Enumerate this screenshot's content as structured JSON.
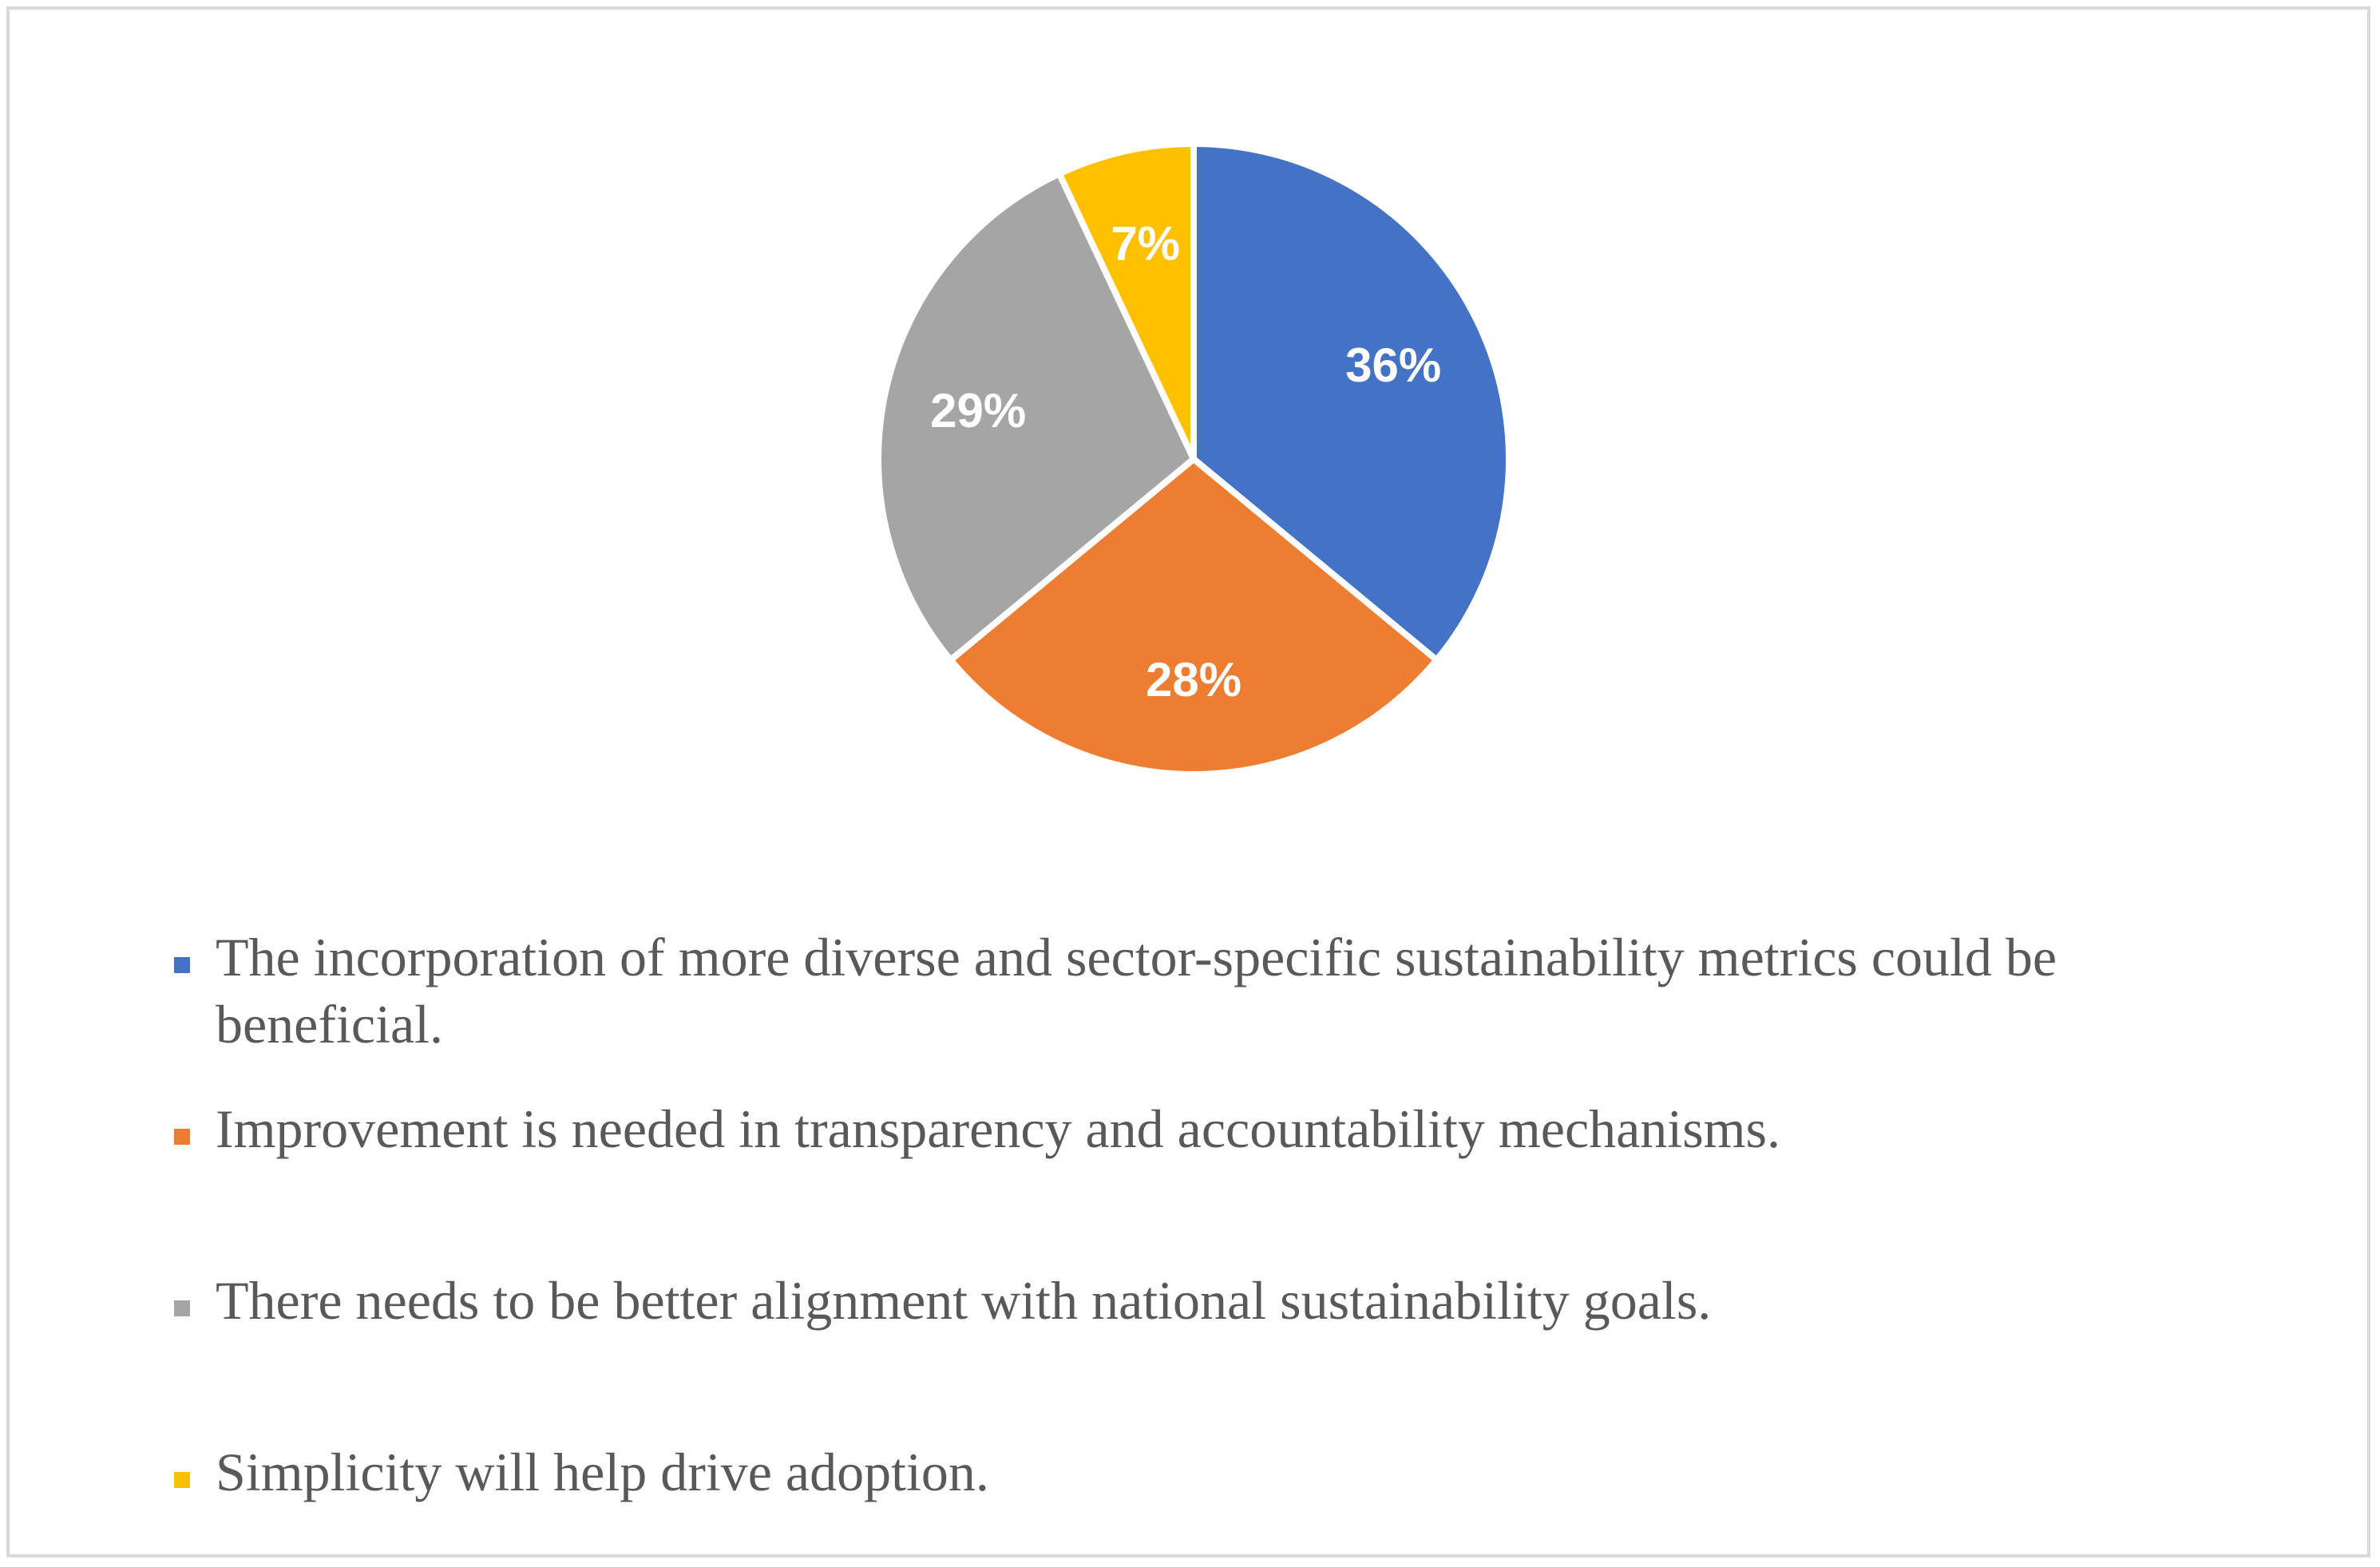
{
  "chart_data": {
    "type": "pie",
    "title": "",
    "series": [
      {
        "name": "",
        "values": [
          36,
          28,
          29,
          7
        ]
      }
    ],
    "categories": [
      "The incorporation of more diverse and sector-specific sustainability metrics could be beneficial.",
      "Improvement is needed in transparency and accountability mechanisms.",
      "There needs to be better alignment with national sustainability goals.",
      "Simplicity will help drive adoption."
    ],
    "data_labels": [
      "36%",
      "28%",
      "29%",
      "7%"
    ],
    "colors": [
      "#4472c4",
      "#ed7d31",
      "#a5a5a5",
      "#ffc000"
    ],
    "legend_position": "bottom",
    "start_angle": "12 o'clock, clockwise"
  },
  "legend": {
    "items": [
      {
        "label": "The incorporation of more diverse and sector-specific sustainability metrics could be beneficial.",
        "color": "#4472c4"
      },
      {
        "label": "Improvement is needed in transparency and accountability mechanisms.",
        "color": "#ed7d31"
      },
      {
        "label": "There needs to be better alignment with national sustainability goals.",
        "color": "#a5a5a5"
      },
      {
        "label": "Simplicity will help drive adoption.",
        "color": "#ffc000"
      }
    ]
  }
}
